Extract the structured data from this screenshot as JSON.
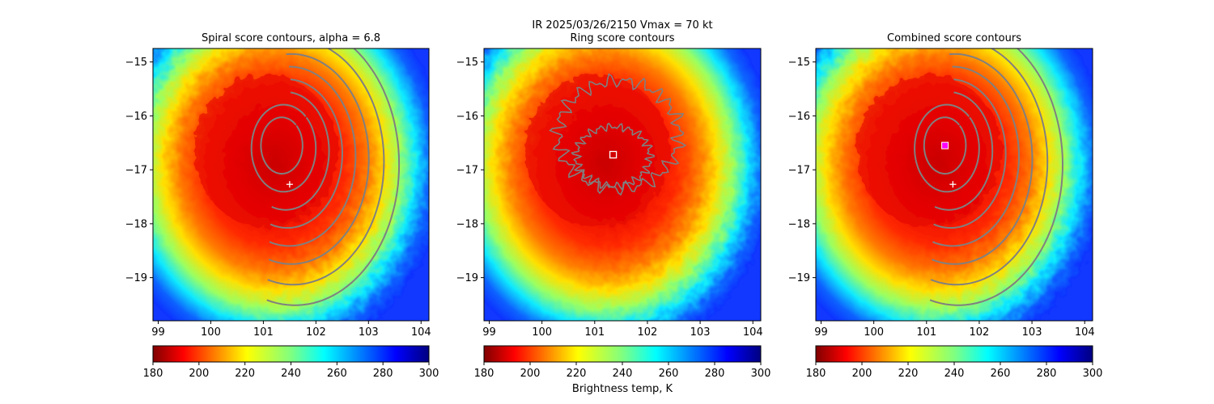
{
  "figure": {
    "suptitle": "IR  2025/03/26/2150    Vmax = 70 kt",
    "colorbar_label": "Brightness temp, K"
  },
  "colormap": {
    "name": "jet_r",
    "stops": [
      "#800000",
      "#ff0000",
      "#ff8000",
      "#ffff00",
      "#80ff80",
      "#00ffff",
      "#0080ff",
      "#0000ff",
      "#000080"
    ]
  },
  "chart_data": [
    {
      "type": "heatmap",
      "title": "Spiral score contours, alpha =  6.8",
      "xlim": [
        98.9,
        104.15
      ],
      "ylim": [
        -19.8,
        -14.75
      ],
      "xticks": [
        "99",
        "100",
        "101",
        "102",
        "103",
        "104"
      ],
      "yticks": [
        "−15",
        "−16",
        "−17",
        "−18",
        "−19"
      ],
      "colorbar": {
        "range": [
          180,
          300
        ],
        "ticks": [
          "180",
          "200",
          "220",
          "240",
          "260",
          "280",
          "300"
        ]
      },
      "cold_core_center": [
        101.2,
        -16.5
      ],
      "markers": [
        {
          "symbol": "plus",
          "lon": 101.5,
          "lat": -17.27,
          "color": "#ffffff"
        }
      ],
      "contour_color": "#808080"
    },
    {
      "type": "heatmap",
      "title": "Ring score contours",
      "xlim": [
        98.9,
        104.15
      ],
      "ylim": [
        -19.8,
        -14.75
      ],
      "xticks": [
        "99",
        "100",
        "101",
        "102",
        "103",
        "104"
      ],
      "yticks": [
        "−15",
        "−16",
        "−17",
        "−18",
        "−19"
      ],
      "colorbar": {
        "range": [
          180,
          300
        ],
        "ticks": [
          "180",
          "200",
          "220",
          "240",
          "260",
          "280",
          "300"
        ]
      },
      "cold_core_center": [
        101.2,
        -16.5
      ],
      "markers": [
        {
          "symbol": "square",
          "lon": 101.35,
          "lat": -16.72,
          "color": "#ffffff"
        }
      ],
      "contour_color": "#808080"
    },
    {
      "type": "heatmap",
      "title": "Combined score contours",
      "xlim": [
        98.9,
        104.15
      ],
      "ylim": [
        -19.8,
        -14.75
      ],
      "xticks": [
        "99",
        "100",
        "101",
        "102",
        "103",
        "104"
      ],
      "yticks": [
        "−15",
        "−16",
        "−17",
        "−18",
        "−19"
      ],
      "colorbar": {
        "range": [
          180,
          300
        ],
        "ticks": [
          "180",
          "200",
          "220",
          "240",
          "260",
          "280",
          "300"
        ]
      },
      "cold_core_center": [
        101.2,
        -16.5
      ],
      "markers": [
        {
          "symbol": "square-filled",
          "lon": 101.35,
          "lat": -16.55,
          "color": "#ff00ff"
        },
        {
          "symbol": "plus",
          "lon": 101.5,
          "lat": -17.27,
          "color": "#ffffff"
        }
      ],
      "contour_color": "#808080"
    }
  ]
}
